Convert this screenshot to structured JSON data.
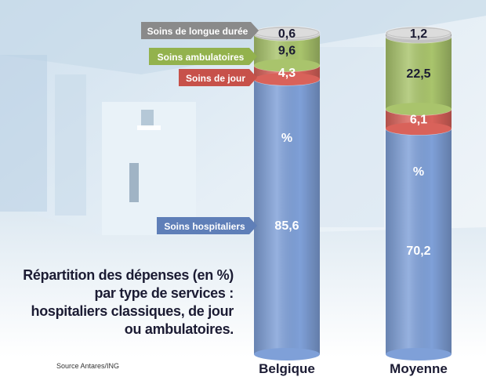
{
  "chart_data": {
    "type": "bar",
    "stacked": true,
    "title_lines": [
      "Répartition des dépenses (en %)",
      "par type de services :",
      "hospitaliers classiques, de jour",
      "ou ambulatoires."
    ],
    "source": "Source Antares/ING",
    "categories": [
      "Belgique",
      "Moyenne"
    ],
    "series": [
      {
        "name": "Soins hospitaliers",
        "values": [
          85.6,
          70.2
        ],
        "labels": [
          "85,6",
          "70,2"
        ],
        "color": "#7fa0d8"
      },
      {
        "name": "Soins de jour",
        "values": [
          4.3,
          6.1
        ],
        "labels": [
          "4,3",
          "6,1"
        ],
        "color": "#d9625a"
      },
      {
        "name": "Soins ambulatoires",
        "values": [
          9.6,
          22.5
        ],
        "labels": [
          "9,6",
          "22,5"
        ],
        "color": "#a9c46c"
      },
      {
        "name": "Soins de longue durée",
        "values": [
          0.6,
          1.2
        ],
        "labels": [
          "0,6",
          "1,2"
        ],
        "color": "#c2c2c2"
      }
    ],
    "percent_sign": "%",
    "legend_style": "arrow tags pointing to the Belgique column",
    "ylim": [
      0,
      100
    ]
  }
}
